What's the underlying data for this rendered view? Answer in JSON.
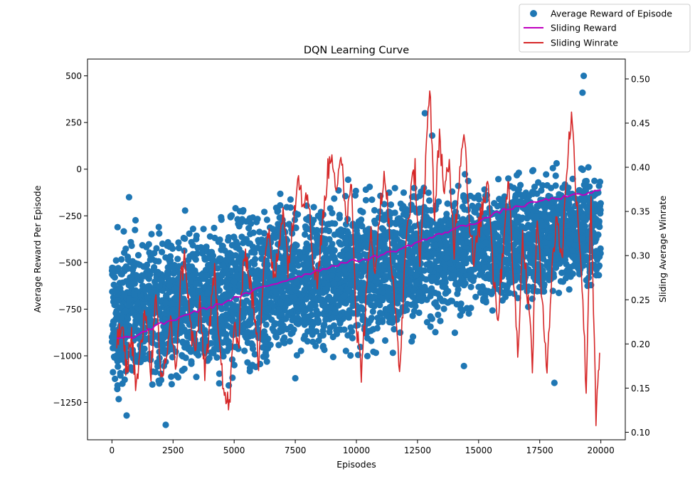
{
  "chart_data": {
    "type": "scatter",
    "title": "DQN Learning Curve",
    "xlabel": "Episodes",
    "ylabel": "Average Reward Per Episode",
    "y2label": "Sliding Average Winrate",
    "xlim": [
      -1000,
      21000
    ],
    "ylim": [
      -1450,
      590
    ],
    "y2lim": [
      0.0915,
      0.5225
    ],
    "xticks": [
      0,
      2500,
      5000,
      7500,
      10000,
      12500,
      15000,
      17500,
      20000
    ],
    "yticks": [
      500,
      250,
      0,
      -250,
      -500,
      -750,
      -1000,
      -1250
    ],
    "y2ticks": [
      0.1,
      0.15,
      0.2,
      0.25,
      0.3,
      0.35,
      0.4,
      0.45,
      0.5
    ],
    "grid": false,
    "legend_position": "top-right (outside plot area)",
    "legend": [
      {
        "label": "Average Reward of Episode",
        "marker": "circle",
        "color": "#1f77b4"
      },
      {
        "label": "Sliding Reward",
        "marker": "line",
        "color": "#bf00bf"
      },
      {
        "label": "Sliding Winrate",
        "marker": "line",
        "color": "#d62728"
      }
    ],
    "series": [
      {
        "name": "Average Reward of Episode",
        "kind": "scatter",
        "axis": "left",
        "color": "#1f77b4",
        "note": "≈20000 episodes; upper/lower envelope of the point cloud read from the chart (individual points not recoverable)",
        "envelope": {
          "x": [
            0,
            1000,
            2500,
            5000,
            7500,
            10000,
            12500,
            15000,
            17500,
            20000
          ],
          "upper": [
            -280,
            -220,
            -260,
            -100,
            -80,
            -60,
            -20,
            20,
            60,
            70
          ],
          "lower": [
            -1290,
            -1300,
            -1230,
            -1250,
            -1100,
            -1070,
            -950,
            -840,
            -760,
            -720
          ]
        },
        "outliers": [
          {
            "x": 2200,
            "y": -1370
          },
          {
            "x": 600,
            "y": -1320
          },
          {
            "x": 7500,
            "y": -1120
          },
          {
            "x": 14400,
            "y": -1055
          },
          {
            "x": 18100,
            "y": -1145
          },
          {
            "x": 19300,
            "y": 500
          },
          {
            "x": 19250,
            "y": 410
          },
          {
            "x": 12800,
            "y": 300
          },
          {
            "x": 13100,
            "y": 180
          },
          {
            "x": 700,
            "y": -150
          }
        ]
      },
      {
        "name": "Sliding Reward",
        "kind": "line",
        "axis": "left",
        "color": "#bf00bf",
        "x": [
          200,
          500,
          1000,
          1500,
          2000,
          2500,
          3000,
          3500,
          4000,
          4500,
          5000,
          5500,
          6000,
          6500,
          7000,
          7500,
          8000,
          8500,
          9000,
          9500,
          10000,
          10500,
          11000,
          11500,
          12000,
          12500,
          13000,
          13500,
          14000,
          14500,
          15000,
          15500,
          16000,
          16500,
          17000,
          17500,
          18000,
          18500,
          19000,
          19500,
          20000
        ],
        "values": [
          -910,
          -905,
          -895,
          -860,
          -830,
          -810,
          -780,
          -760,
          -740,
          -720,
          -690,
          -670,
          -640,
          -620,
          -600,
          -580,
          -560,
          -540,
          -520,
          -500,
          -490,
          -480,
          -460,
          -440,
          -420,
          -390,
          -370,
          -345,
          -320,
          -300,
          -280,
          -250,
          -220,
          -205,
          -190,
          -170,
          -160,
          -150,
          -140,
          -130,
          -110
        ]
      },
      {
        "name": "Sliding Winrate",
        "kind": "line",
        "axis": "right",
        "color": "#d62728",
        "x": [
          200,
          400,
          600,
          800,
          1000,
          1200,
          1400,
          1600,
          1800,
          2000,
          2200,
          2400,
          2600,
          2800,
          3000,
          3200,
          3400,
          3600,
          3800,
          4000,
          4200,
          4400,
          4600,
          4800,
          5000,
          5200,
          5400,
          5600,
          5800,
          6000,
          6200,
          6400,
          6600,
          6800,
          7000,
          7200,
          7400,
          7600,
          7800,
          8000,
          8200,
          8400,
          8600,
          8800,
          9000,
          9200,
          9400,
          9600,
          9800,
          10000,
          10200,
          10400,
          10600,
          10800,
          11000,
          11200,
          11400,
          11600,
          11800,
          12000,
          12200,
          12400,
          12600,
          12800,
          13000,
          13200,
          13400,
          13600,
          13800,
          14000,
          14200,
          14400,
          14600,
          14800,
          15000,
          15200,
          15400,
          15600,
          15800,
          16000,
          16200,
          16400,
          16600,
          16800,
          17000,
          17200,
          17400,
          17600,
          17800,
          18000,
          18200,
          18400,
          18600,
          18800,
          19000,
          19200,
          19400,
          19600,
          19800,
          19950
        ],
        "values": [
          0.2,
          0.22,
          0.17,
          0.21,
          0.15,
          0.2,
          0.24,
          0.17,
          0.25,
          0.16,
          0.18,
          0.23,
          0.16,
          0.27,
          0.3,
          0.22,
          0.19,
          0.24,
          0.17,
          0.22,
          0.28,
          0.21,
          0.14,
          0.13,
          0.22,
          0.2,
          0.31,
          0.28,
          0.24,
          0.18,
          0.29,
          0.33,
          0.27,
          0.3,
          0.36,
          0.29,
          0.33,
          0.4,
          0.36,
          0.38,
          0.3,
          0.27,
          0.33,
          0.39,
          0.42,
          0.37,
          0.41,
          0.34,
          0.39,
          0.22,
          0.17,
          0.25,
          0.33,
          0.28,
          0.37,
          0.39,
          0.3,
          0.23,
          0.17,
          0.31,
          0.36,
          0.4,
          0.29,
          0.38,
          0.5,
          0.34,
          0.44,
          0.37,
          0.4,
          0.31,
          0.39,
          0.45,
          0.35,
          0.29,
          0.33,
          0.36,
          0.39,
          0.28,
          0.23,
          0.31,
          0.39,
          0.29,
          0.19,
          0.32,
          0.26,
          0.18,
          0.35,
          0.24,
          0.18,
          0.28,
          0.35,
          0.29,
          0.4,
          0.46,
          0.37,
          0.29,
          0.15,
          0.37,
          0.11,
          0.19
        ]
      }
    ]
  }
}
